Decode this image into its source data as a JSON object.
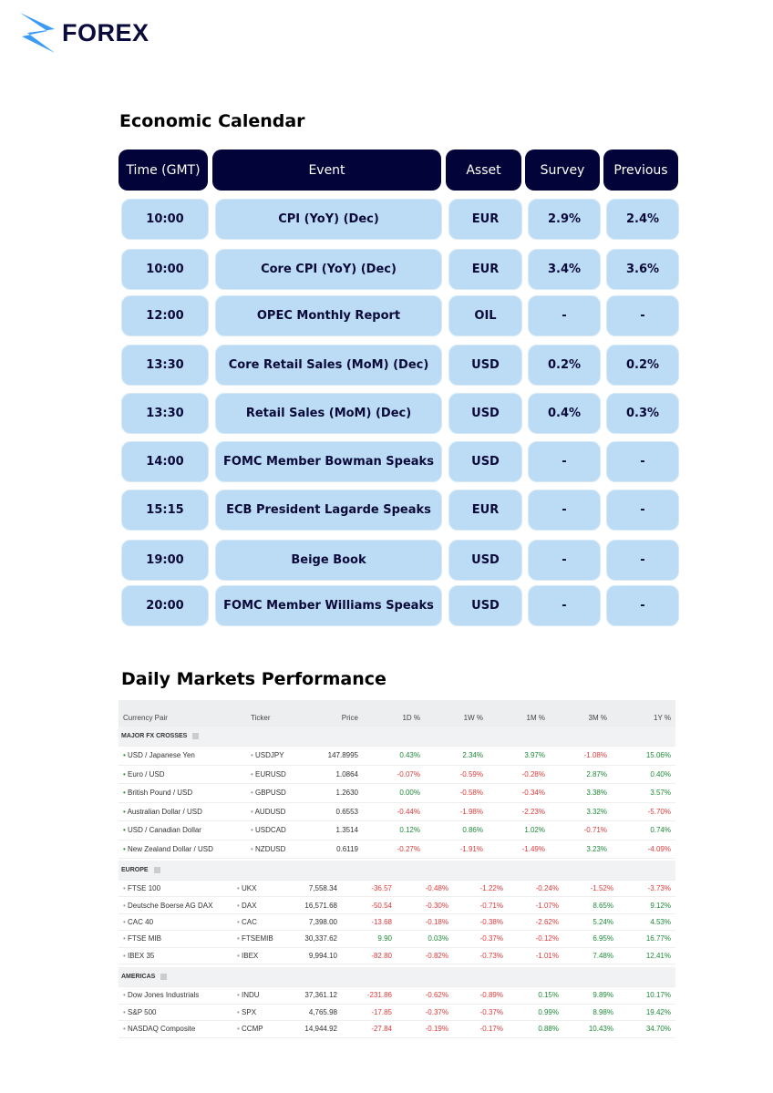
{
  "brand": {
    "name": "FOREX",
    "accent": "#3b9cf5",
    "navy": "#020338",
    "cell_bg": "#bcdcf5"
  },
  "calendar": {
    "title": "Economic Calendar",
    "headers": [
      "Time (GMT)",
      "Event",
      "Asset",
      "Survey",
      "Previous"
    ],
    "rows": [
      [
        "10:00",
        "CPI (YoY) (Dec)",
        "EUR",
        "2.9%",
        "2.4%"
      ],
      [
        "10:00",
        "Core CPI (YoY) (Dec)",
        "EUR",
        "3.4%",
        "3.6%"
      ],
      [
        "12:00",
        "OPEC Monthly Report",
        "OIL",
        "-",
        "-"
      ],
      [
        "13:30",
        "Core Retail Sales (MoM) (Dec)",
        "USD",
        "0.2%",
        "0.2%"
      ],
      [
        "13:30",
        "Retail Sales (MoM) (Dec)",
        "USD",
        "0.4%",
        "0.3%"
      ],
      [
        "14:00",
        "FOMC Member Bowman Speaks",
        "USD",
        "-",
        "-"
      ],
      [
        "15:15",
        "ECB President Lagarde Speaks",
        "EUR",
        "-",
        "-"
      ],
      [
        "19:00",
        "Beige Book",
        "USD",
        "-",
        "-"
      ],
      [
        "20:00",
        "FOMC Member Williams Speaks",
        "USD",
        "-",
        "-"
      ]
    ]
  },
  "markets": {
    "title": "Daily Markets Performance",
    "headers": [
      "Currency Pair",
      "Ticker",
      "Price",
      "1D %",
      "1W %",
      "1M %",
      "3M %",
      "1Y %"
    ],
    "fx": {
      "label": "MAJOR FX CROSSES",
      "rows": [
        [
          "USD / Japanese Yen",
          "USDJPY",
          "147.8995",
          "0.43%",
          "2.34%",
          "3.97%",
          "-1.08%",
          "15.06%"
        ],
        [
          "Euro / USD",
          "EURUSD",
          "1.0864",
          "-0.07%",
          "-0.59%",
          "-0.28%",
          "2.87%",
          "0.40%"
        ],
        [
          "British Pound / USD",
          "GBPUSD",
          "1.2630",
          "0.00%",
          "-0.58%",
          "-0.34%",
          "3.38%",
          "3.57%"
        ],
        [
          "Australian Dollar / USD",
          "AUDUSD",
          "0.6553",
          "-0.44%",
          "-1.98%",
          "-2.23%",
          "3.32%",
          "-5.70%"
        ],
        [
          "USD / Canadian Dollar",
          "USDCAD",
          "1.3514",
          "0.12%",
          "0.86%",
          "1.02%",
          "-0.71%",
          "0.74%"
        ],
        [
          "New Zealand Dollar / USD",
          "NZDUSD",
          "0.6119",
          "-0.27%",
          "-1.91%",
          "-1.49%",
          "3.23%",
          "-4.09%"
        ]
      ]
    },
    "europe": {
      "label": "EUROPE",
      "rows": [
        [
          "FTSE 100",
          "UKX",
          "7,558.34",
          "-36.57",
          "-0.48%",
          "-1.22%",
          "-0.24%",
          "-1.52%",
          "-3.73%"
        ],
        [
          "Deutsche Boerse AG DAX",
          "DAX",
          "16,571.68",
          "-50.54",
          "-0.30%",
          "-0.71%",
          "-1.07%",
          "8.65%",
          "9.12%"
        ],
        [
          "CAC 40",
          "CAC",
          "7,398.00",
          "-13.68",
          "-0.18%",
          "-0.38%",
          "-2.62%",
          "5.24%",
          "4.53%"
        ],
        [
          "FTSE MIB",
          "FTSEMIB",
          "30,337.62",
          "9.90",
          "0.03%",
          "-0.37%",
          "-0.12%",
          "6.95%",
          "16.77%"
        ],
        [
          "IBEX 35",
          "IBEX",
          "9,994.10",
          "-82.80",
          "-0.82%",
          "-0.73%",
          "-1.01%",
          "7.48%",
          "12.41%"
        ]
      ]
    },
    "americas": {
      "label": "AMERICAS",
      "rows": [
        [
          "Dow Jones Industrials",
          "INDU",
          "37,361.12",
          "-231.86",
          "-0.62%",
          "-0.89%",
          "0.15%",
          "9.89%",
          "10.17%"
        ],
        [
          "S&P 500",
          "SPX",
          "4,765.98",
          "-17.85",
          "-0.37%",
          "-0.37%",
          "0.99%",
          "8.98%",
          "19.42%"
        ],
        [
          "NASDAQ Composite",
          "CCMP",
          "14,944.92",
          "-27.84",
          "-0.19%",
          "-0.17%",
          "0.88%",
          "10.43%",
          "34.70%"
        ]
      ]
    }
  }
}
